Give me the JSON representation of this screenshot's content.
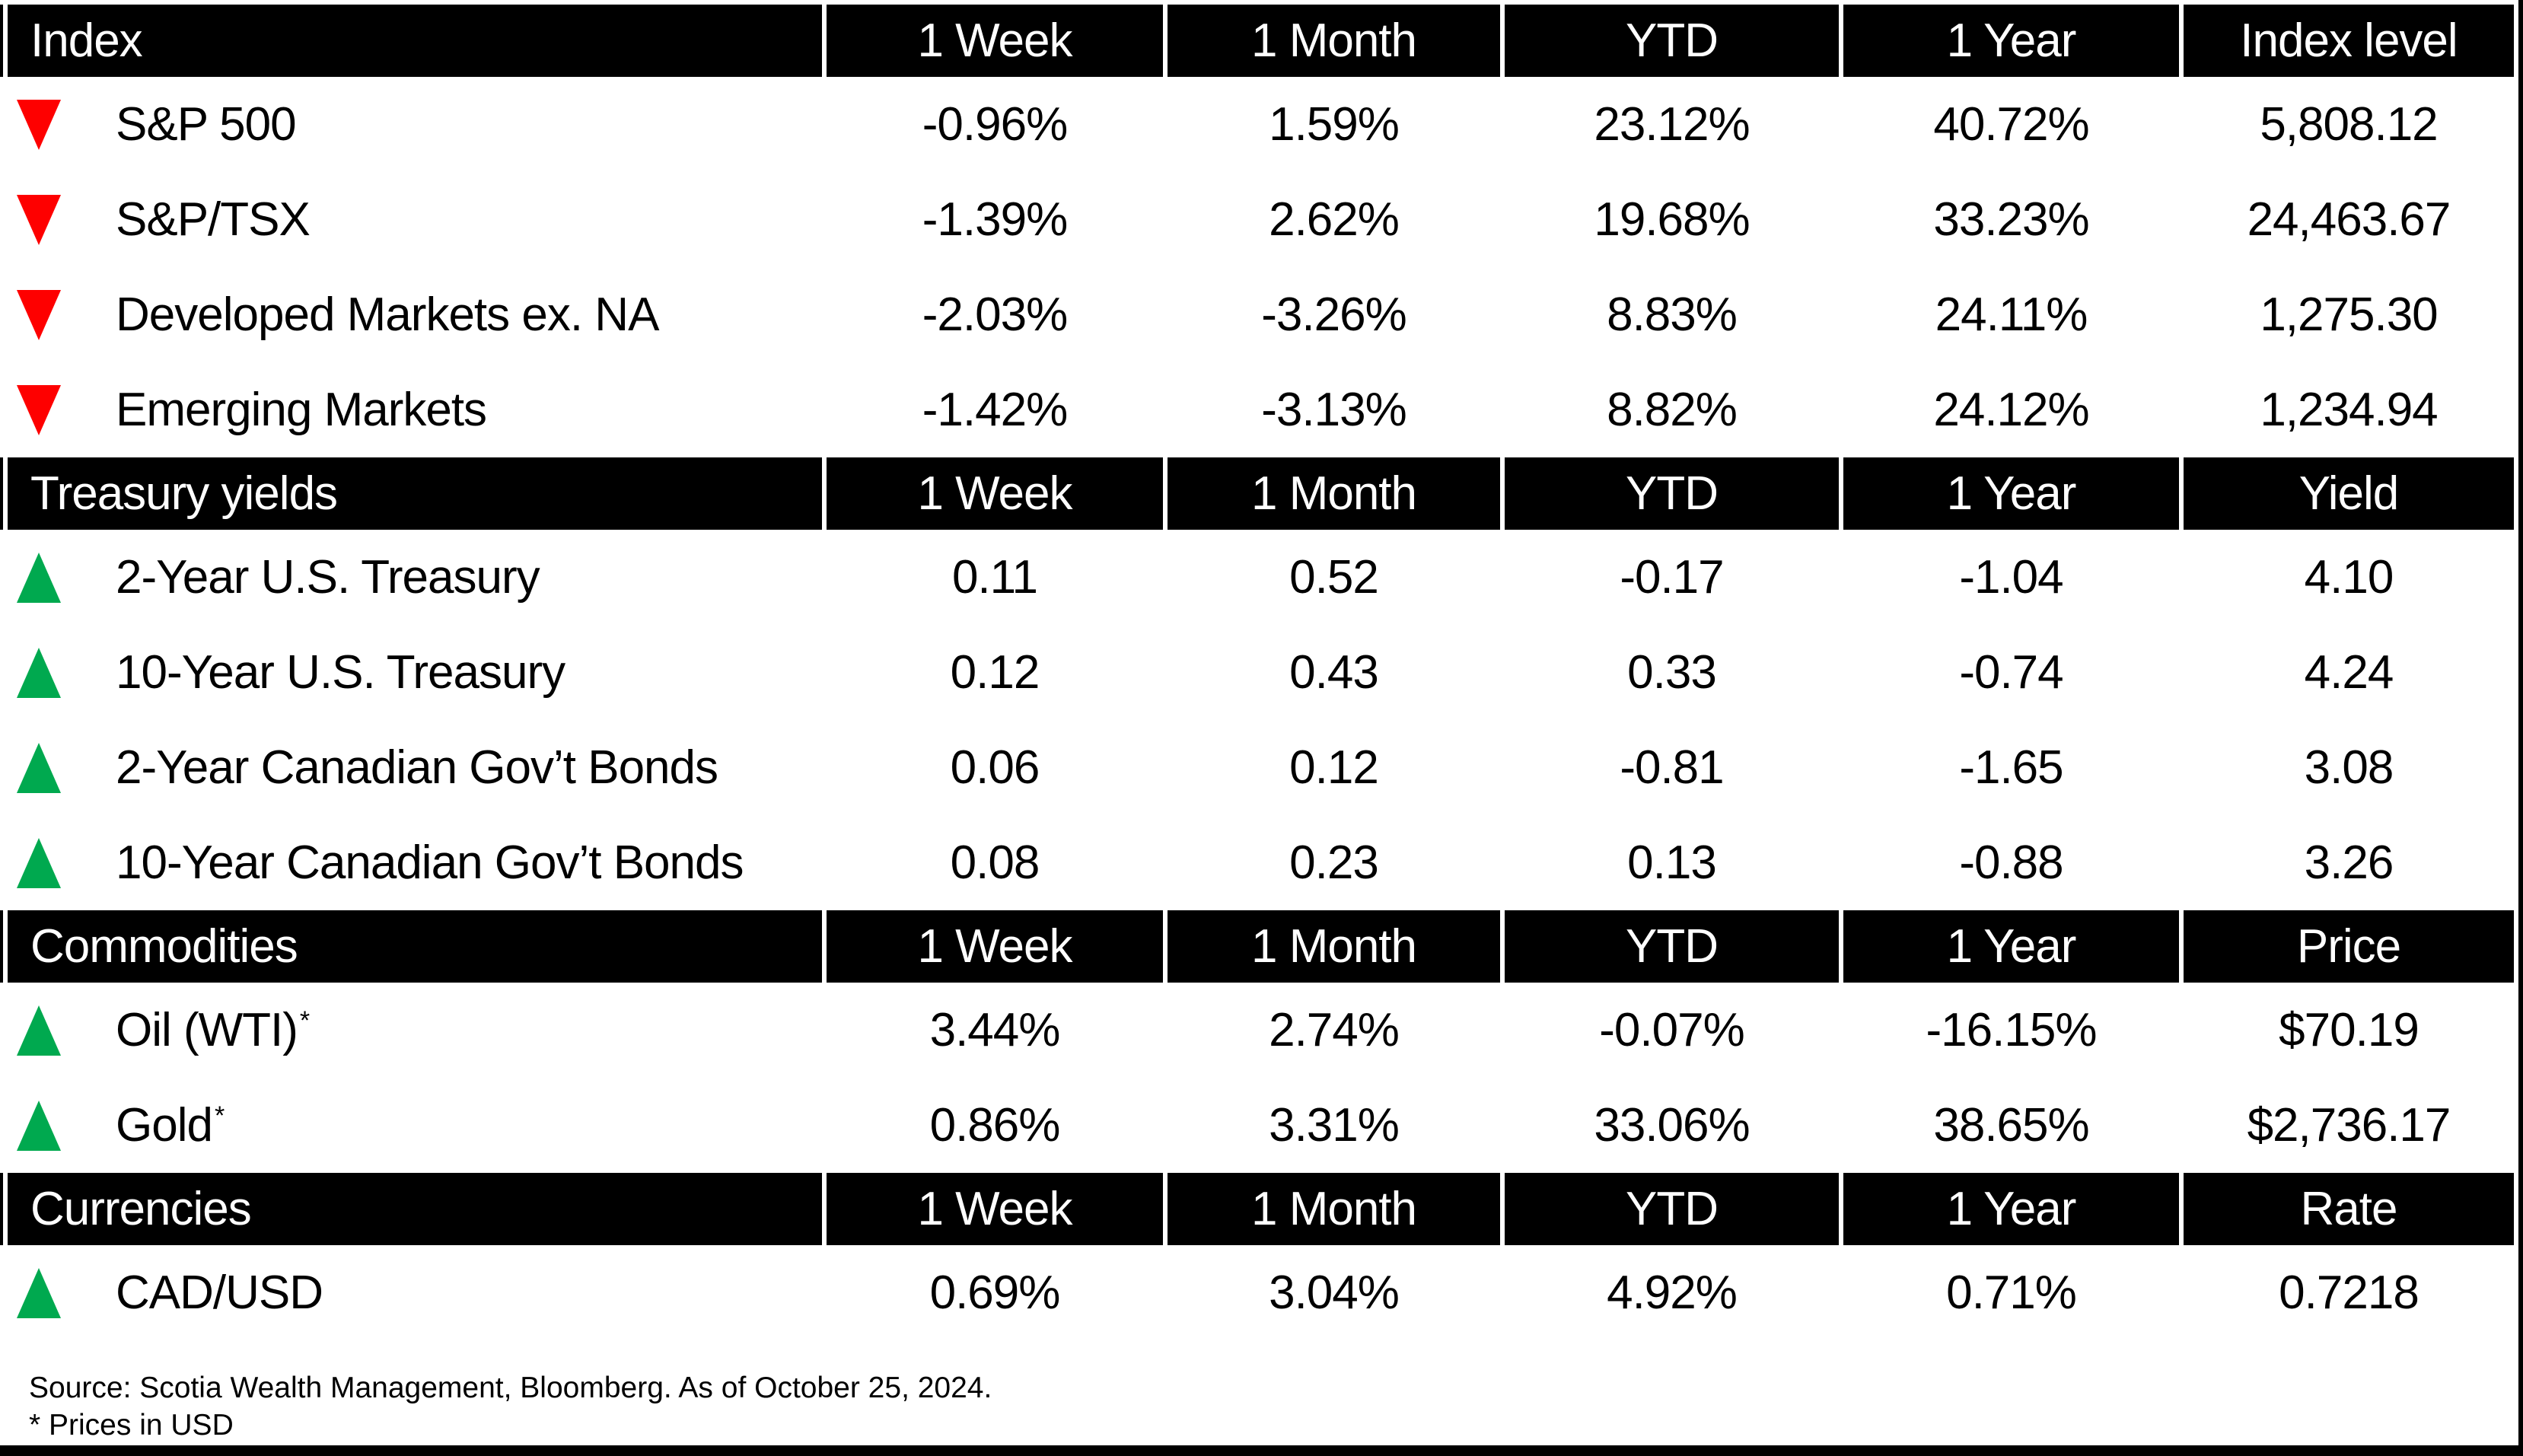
{
  "chart_data": [
    {
      "type": "table",
      "title": "Index",
      "columns": [
        "1 Week",
        "1 Month",
        "YTD",
        "1 Year",
        "Index level"
      ],
      "rows": [
        {
          "label": "S&P 500",
          "direction": "down",
          "values": [
            "-0.96%",
            "1.59%",
            "23.12%",
            "40.72%",
            "5,808.12"
          ]
        },
        {
          "label": "S&P/TSX",
          "direction": "down",
          "values": [
            "-1.39%",
            "2.62%",
            "19.68%",
            "33.23%",
            "24,463.67"
          ]
        },
        {
          "label": "Developed Markets ex. NA",
          "direction": "down",
          "values": [
            "-2.03%",
            "-3.26%",
            "8.83%",
            "24.11%",
            "1,275.30"
          ]
        },
        {
          "label": "Emerging Markets",
          "direction": "down",
          "values": [
            "-1.42%",
            "-3.13%",
            "8.82%",
            "24.12%",
            "1,234.94"
          ]
        }
      ]
    },
    {
      "type": "table",
      "title": "Treasury yields",
      "columns": [
        "1 Week",
        "1 Month",
        "YTD",
        "1 Year",
        "Yield"
      ],
      "rows": [
        {
          "label": "2-Year U.S. Treasury",
          "direction": "up",
          "values": [
            "0.11",
            "0.52",
            "-0.17",
            "-1.04",
            "4.10"
          ]
        },
        {
          "label": "10-Year U.S. Treasury",
          "direction": "up",
          "values": [
            "0.12",
            "0.43",
            "0.33",
            "-0.74",
            "4.24"
          ]
        },
        {
          "label": "2-Year Canadian Gov’t Bonds",
          "direction": "up",
          "values": [
            "0.06",
            "0.12",
            "-0.81",
            "-1.65",
            "3.08"
          ]
        },
        {
          "label": "10-Year Canadian Gov’t Bonds",
          "direction": "up",
          "values": [
            "0.08",
            "0.23",
            "0.13",
            "-0.88",
            "3.26"
          ]
        }
      ]
    },
    {
      "type": "table",
      "title": "Commodities",
      "columns": [
        "1 Week",
        "1 Month",
        "YTD",
        "1 Year",
        "Price"
      ],
      "rows": [
        {
          "label": "Oil (WTI)",
          "label_sup": "*",
          "direction": "up",
          "values": [
            "3.44%",
            "2.74%",
            "-0.07%",
            "-16.15%",
            "$70.19"
          ]
        },
        {
          "label": "Gold",
          "label_sup": "*",
          "direction": "up",
          "values": [
            "0.86%",
            "3.31%",
            "33.06%",
            "38.65%",
            "$2,736.17"
          ]
        }
      ]
    },
    {
      "type": "table",
      "title": "Currencies",
      "columns": [
        "1 Week",
        "1 Month",
        "YTD",
        "1 Year",
        "Rate"
      ],
      "rows": [
        {
          "label": "CAD/USD",
          "direction": "up",
          "values": [
            "0.69%",
            "3.04%",
            "4.92%",
            "0.71%",
            "0.7218"
          ]
        }
      ]
    }
  ],
  "footer": {
    "source": "Source: Scotia Wealth Management, Bloomberg. As of October 25, 2024.",
    "footnote": "* Prices in USD"
  },
  "colors": {
    "header_bg": "#000000",
    "header_text": "#FFFFFF",
    "up_arrow": "#00A94F",
    "down_arrow": "#FE0000",
    "body_bg": "#FFFFFF",
    "body_text": "#000000"
  }
}
